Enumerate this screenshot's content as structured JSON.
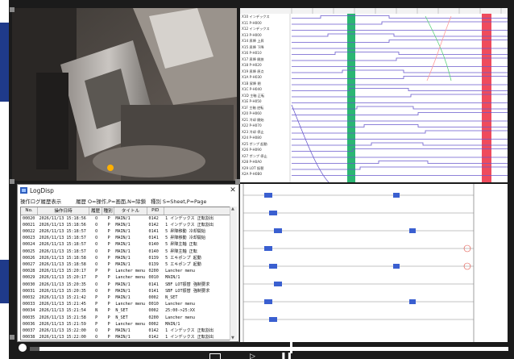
{
  "log_window": {
    "title": "LogDisp",
    "close_glyph": "✕",
    "header_caption": "操作ログ履歴表示",
    "legend_type": "履歴 O=操作,P=画面,N=除鎖",
    "legend_kind": "種別 S=Sheet,P=Page",
    "columns": [
      "No.",
      "操作日時",
      "履歴",
      "種別",
      "タイトル",
      "PID",
      ""
    ],
    "rows": [
      [
        "00020",
        "2026/11/13 15:18:56",
        "O",
        "P",
        "MAIN/1",
        "0142",
        "1 インデックス 正転割出"
      ],
      [
        "00021",
        "2026/11/13 15:18:56",
        "O",
        "P",
        "MAIN/1",
        "0142",
        "1 インデックス 正転割出"
      ],
      [
        "00022",
        "2026/11/13 15:18:57",
        "O",
        "P",
        "MAIN/1",
        "0141",
        "5 昇降移動 冷却開始"
      ],
      [
        "00023",
        "2026/11/13 15:18:57",
        "O",
        "P",
        "MAIN/1",
        "0141",
        "5 昇降移動 冷却開始"
      ],
      [
        "00024",
        "2026/11/13 15:18:57",
        "O",
        "P",
        "MAIN/1",
        "0140",
        "5 昇降主軸 正転"
      ],
      [
        "00025",
        "2026/11/13 15:18:57",
        "O",
        "P",
        "MAIN/1",
        "0140",
        "5 昇降主軸 正転"
      ],
      [
        "00026",
        "2026/11/13 15:18:58",
        "O",
        "P",
        "MAIN/1",
        "0139",
        "5 エキポンプ 起動"
      ],
      [
        "00027",
        "2026/11/13 15:18:58",
        "O",
        "P",
        "MAIN/1",
        "0139",
        "5 エキポンプ 起動"
      ],
      [
        "00028",
        "2026/11/13 15:20:17",
        "P",
        "P",
        "Lancher menu",
        "0200",
        "Lancher menu"
      ],
      [
        "00029",
        "2026/11/13 15:20:17",
        "P",
        "P",
        "Lancher menu",
        "0010",
        "MAIN/1"
      ],
      [
        "00030",
        "2026/11/13 15:20:35",
        "O",
        "P",
        "MAIN/1",
        "0141",
        "SBF LOT振替 強制要求"
      ],
      [
        "00031",
        "2026/11/13 15:20:35",
        "O",
        "P",
        "MAIN/1",
        "0141",
        "SBF LOT振替 強制要求"
      ],
      [
        "00032",
        "2026/11/13 15:21:42",
        "P",
        "P",
        "MAIN/1",
        "0002",
        "N_SET"
      ],
      [
        "00033",
        "2026/11/13 15:21:45",
        "P",
        "P",
        "Lancher menu",
        "0010",
        "Lancher menu"
      ],
      [
        "00034",
        "2026/11/13 15:21:54",
        "N",
        "P",
        "N_SET",
        "0002",
        "25:00->25:XX"
      ],
      [
        "00035",
        "2026/11/13 15:21:58",
        "P",
        "P",
        "N_SET",
        "0200",
        "Lancher menu"
      ],
      [
        "00036",
        "2026/11/13 15:21:59",
        "P",
        "P",
        "Lancher menu",
        "0002",
        "MAIN/1"
      ],
      [
        "00037",
        "2026/11/13 15:22:00",
        "O",
        "P",
        "MAIN/1",
        "0142",
        "1 インデックス 正転割出"
      ],
      [
        "00038",
        "2026/11/13 15:22:00",
        "O",
        "P",
        "MAIN/1",
        "0142",
        "1 インデックス 正転割出"
      ],
      [
        "00039",
        "2026/11/13 15:22:02",
        "O",
        "P",
        "MAIN/1",
        "0141",
        "5 昇降移動 冷却開始"
      ],
      [
        "00040",
        "2026/11/13 15:22:02",
        "O",
        "P",
        "MAIN/1",
        "0141",
        "5 昇降移動 冷却開始"
      ]
    ]
  },
  "timing_chart": {
    "signals": [
      "X10 インデックス",
      "X11 P-H000",
      "X12 インデックス",
      "X13 P-H000",
      "X14 昇降 上昇",
      "X15 昇降 下降",
      "X16 P-H010",
      "X17 昇降 開放",
      "X18 P-H020",
      "X19 昇降 原点",
      "X1A P-H030",
      "X1B 昇降 閉",
      "X1C P-H040",
      "X1D 主軸 正転",
      "X1E P-H050",
      "X1F 主軸 逆転",
      "X20 P-H060",
      "X21 冷却 開始",
      "X22 P-H070",
      "X23 冷却 停止",
      "X24 P-H080",
      "X25 ポンプ 起動",
      "X26 P-H090",
      "X27 ポンプ 停止",
      "X28 P-H0A0",
      "X29 LOT 振替",
      "X2A P-H0B0"
    ],
    "highlight_colors": {
      "green_marker": "#2bb673",
      "red_marker": "#ef4b5c"
    }
  },
  "colors": {
    "accent": "#1f3a8a",
    "frame": "#1b1b1b",
    "signal_line": "#6a5acd"
  }
}
